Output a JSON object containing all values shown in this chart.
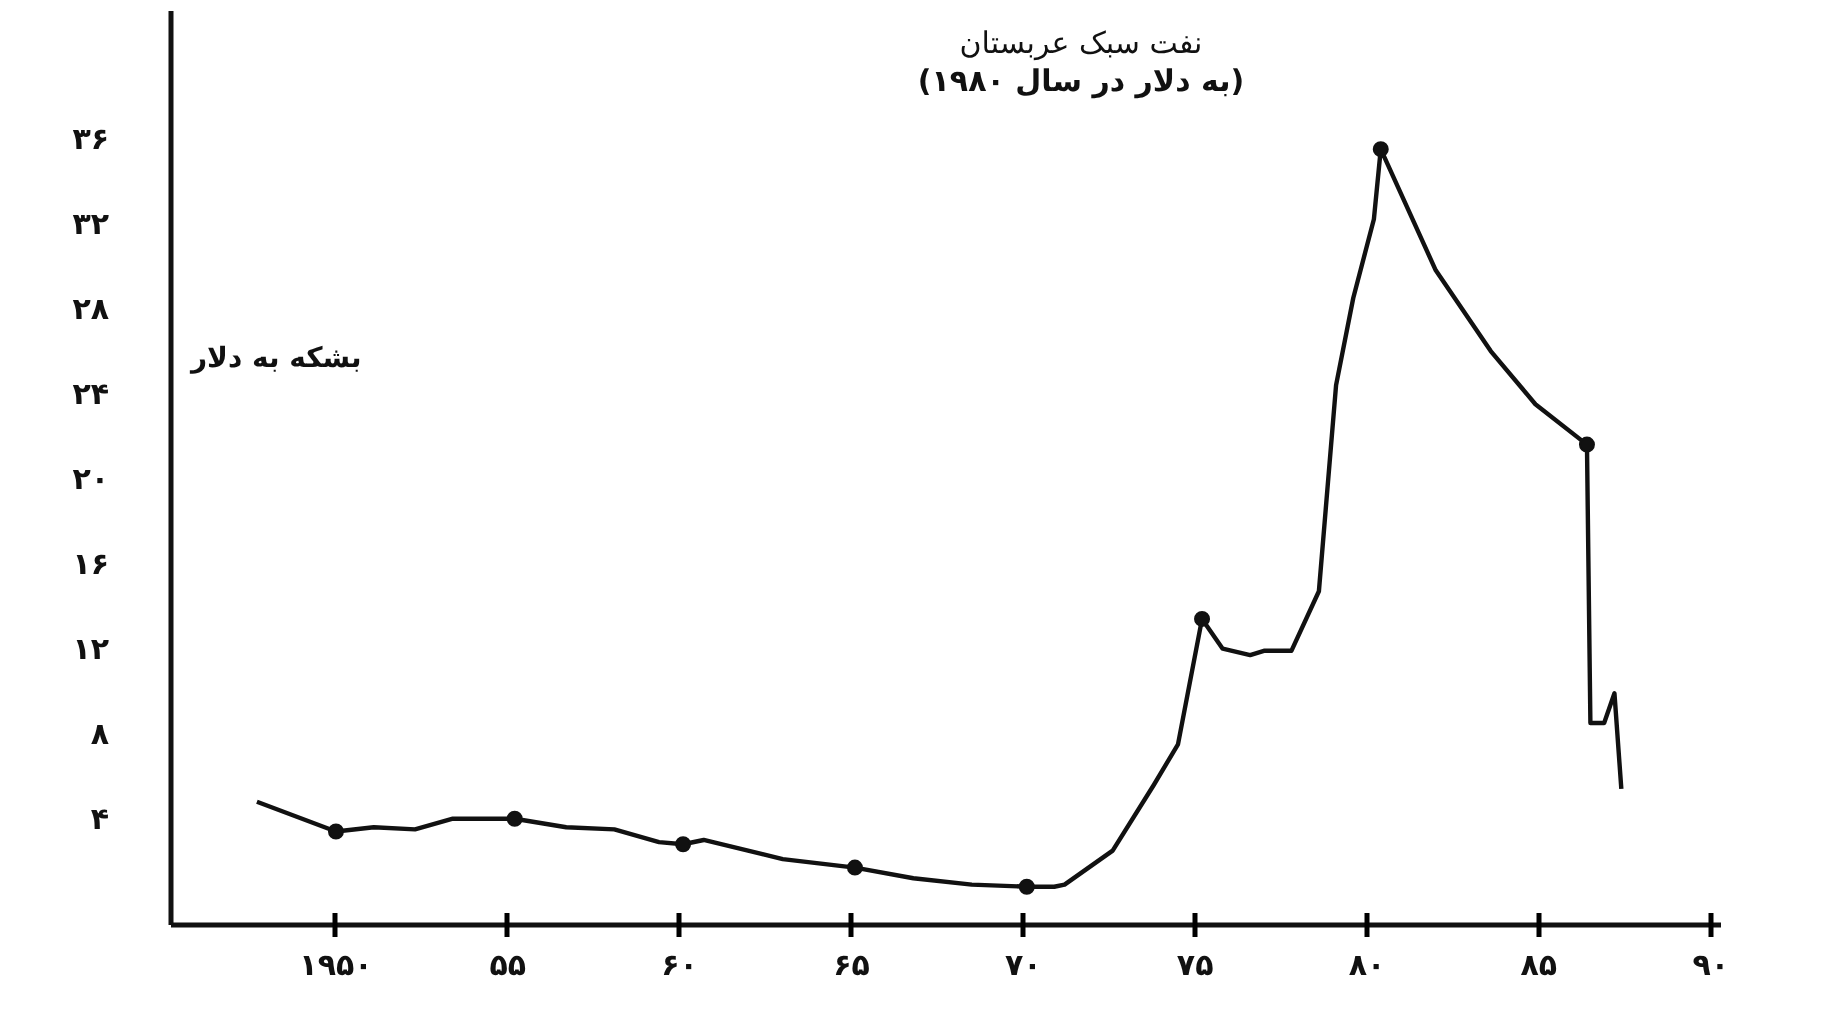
{
  "chart_data": {
    "type": "line",
    "title": "نفت سبک عربستان",
    "subtitle": "(به دلار در سال ۱۹۸۰)",
    "ylabel": "بشکه به دلار",
    "xlim": [
      1945.2,
      1990.3
    ],
    "ylim": [
      -1,
      42
    ],
    "xticks": [
      {
        "value": 1950,
        "label": "۱۹۵۰"
      },
      {
        "value": 1955,
        "label": "۵۵"
      },
      {
        "value": 1960,
        "label": "۶۰"
      },
      {
        "value": 1965,
        "label": "۶۵"
      },
      {
        "value": 1970,
        "label": "۷۰"
      },
      {
        "value": 1975,
        "label": "۷۵"
      },
      {
        "value": 1980,
        "label": "۸۰"
      },
      {
        "value": 1985,
        "label": "۸۵"
      },
      {
        "value": 1990,
        "label": "۹۰"
      }
    ],
    "yticks": [
      {
        "value": 4,
        "label": "۴"
      },
      {
        "value": 8,
        "label": "۸"
      },
      {
        "value": 12,
        "label": "۱۲"
      },
      {
        "value": 16,
        "label": "۱۶"
      },
      {
        "value": 20,
        "label": "۲۰"
      },
      {
        "value": 24,
        "label": "۲۴"
      },
      {
        "value": 28,
        "label": "۲۸"
      },
      {
        "value": 32,
        "label": "۳۲"
      },
      {
        "value": 36,
        "label": "۳۶"
      }
    ],
    "grid": false,
    "line_style": "solid",
    "series": [
      {
        "color": "#111111",
        "marker": "none",
        "x": [
          1947.7,
          1950.0,
          1951.1,
          1952.3,
          1953.4,
          1955.2,
          1956.7,
          1958.1,
          1959.4,
          1960.1,
          1960.7,
          1963.0,
          1965.1,
          1966.8,
          1968.5,
          1970.1,
          1970.9,
          1971.2,
          1972.6,
          1973.8,
          1974.5,
          1975.2,
          1975.8,
          1976.6,
          1977.0,
          1977.8,
          1978.6,
          1979.1,
          1979.6,
          1980.2,
          1980.4,
          1982.0,
          1983.6,
          1984.9,
          1986.4,
          1986.5,
          1986.9,
          1987.2,
          1987.4
        ],
        "values": [
          4.8,
          3.4,
          3.6,
          3.5,
          4.0,
          4.0,
          3.6,
          3.5,
          2.9,
          2.8,
          3.0,
          2.1,
          1.7,
          1.2,
          0.9,
          0.8,
          0.8,
          0.9,
          2.5,
          5.6,
          7.5,
          13.4,
          12.0,
          11.7,
          11.9,
          11.9,
          14.7,
          24.4,
          28.5,
          32.2,
          35.5,
          29.8,
          26.0,
          23.5,
          21.6,
          8.5,
          8.5,
          9.9,
          5.4
        ]
      },
      {
        "type": "scatter",
        "color": "#111111",
        "marker": "circle",
        "x": [
          1950.0,
          1955.2,
          1960.1,
          1965.1,
          1970.1,
          1975.2,
          1980.4,
          1986.4
        ],
        "values": [
          3.4,
          4.0,
          2.8,
          1.7,
          0.8,
          13.4,
          35.5,
          21.6
        ]
      }
    ]
  }
}
